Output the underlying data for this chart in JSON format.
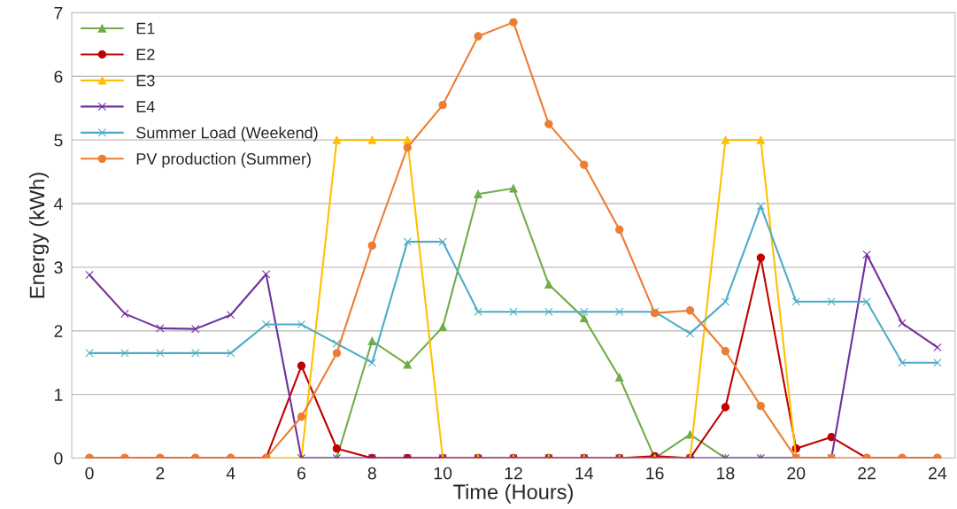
{
  "chart_data": {
    "type": "line",
    "xlabel": "Time (Hours)",
    "ylabel": "Energy (kWh)",
    "x": [
      0,
      1,
      2,
      3,
      4,
      5,
      6,
      7,
      8,
      9,
      10,
      11,
      12,
      13,
      14,
      15,
      16,
      17,
      18,
      19,
      20,
      21,
      22,
      23,
      24
    ],
    "series": [
      {
        "name": "E1",
        "color": "#70ad47",
        "marker": "triangle",
        "values": [
          null,
          null,
          null,
          null,
          null,
          null,
          0,
          0,
          1.84,
          1.47,
          2.06,
          4.15,
          4.24,
          2.73,
          2.2,
          1.27,
          0,
          0.37,
          0,
          0,
          0,
          null,
          null,
          null,
          null
        ]
      },
      {
        "name": "E2",
        "color": "#c00000",
        "marker": "circle",
        "values": [
          0,
          0,
          0,
          0,
          0,
          0,
          1.45,
          0.15,
          0,
          0,
          0,
          0,
          0,
          0,
          0,
          0,
          0.03,
          0,
          0.8,
          3.15,
          0.15,
          0.33,
          0,
          0,
          0
        ]
      },
      {
        "name": "E3",
        "color": "#ffc000",
        "marker": "triangle",
        "values": [
          null,
          null,
          null,
          null,
          null,
          0,
          0,
          5,
          5,
          5,
          0,
          0,
          0,
          0,
          0,
          0,
          0,
          0,
          5,
          5,
          0,
          0,
          null,
          null,
          null
        ]
      },
      {
        "name": "E4",
        "color": "#7030a0",
        "marker": "cross",
        "values": [
          2.88,
          2.27,
          2.04,
          2.03,
          2.25,
          2.89,
          0,
          0,
          0,
          0,
          0,
          0,
          0,
          0,
          0,
          0,
          0,
          0,
          0,
          0,
          0,
          0,
          3.2,
          2.12,
          1.74
        ]
      },
      {
        "name": "Summer Load (Weekend)",
        "color": "#4bacc6",
        "marker": "cross",
        "values": [
          1.65,
          1.65,
          1.65,
          1.65,
          1.65,
          2.1,
          2.1,
          1.8,
          1.5,
          3.4,
          3.4,
          2.3,
          2.3,
          2.3,
          2.3,
          2.3,
          2.3,
          1.96,
          2.46,
          3.96,
          2.46,
          2.46,
          2.46,
          1.5,
          1.5
        ]
      },
      {
        "name": "PV production (Summer)",
        "color": "#ed7d31",
        "marker": "circle",
        "values": [
          0,
          0,
          0,
          0,
          0,
          0,
          0.65,
          1.65,
          3.34,
          4.88,
          5.55,
          6.63,
          6.85,
          5.25,
          4.61,
          3.59,
          2.28,
          2.32,
          1.68,
          0.82,
          0,
          0,
          0,
          0,
          0
        ]
      }
    ],
    "xlim": [
      -0.5,
      24.5
    ],
    "xticks": [
      0,
      2,
      4,
      6,
      8,
      10,
      12,
      14,
      16,
      18,
      20,
      22,
      24
    ],
    "ylim": [
      0,
      7
    ],
    "yticks": [
      0,
      1,
      2,
      3,
      4,
      5,
      6,
      7
    ],
    "grid": "y",
    "legend": "top left",
    "line_style": "solid"
  }
}
